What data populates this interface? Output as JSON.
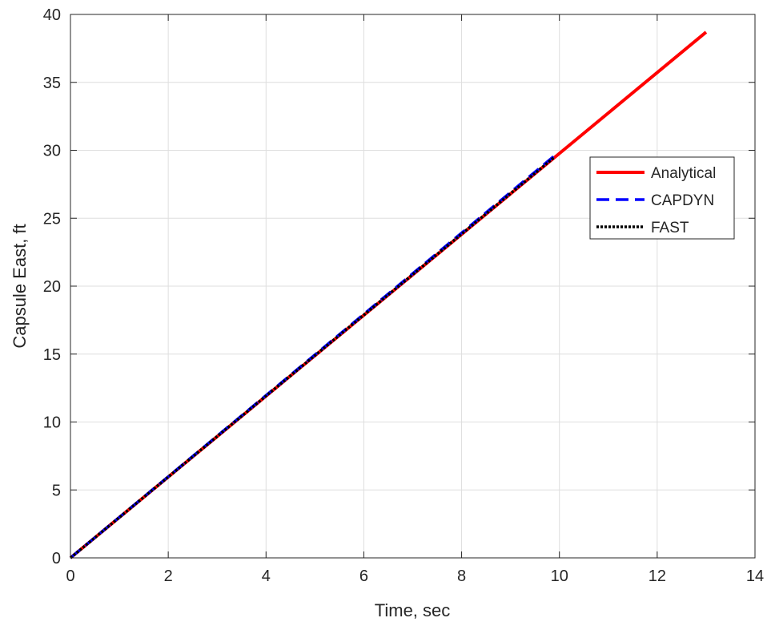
{
  "chart_data": {
    "type": "line",
    "title": "",
    "xlabel": "Time, sec",
    "ylabel": "Capsule East, ft",
    "xlim": [
      0,
      14
    ],
    "ylim": [
      0,
      40
    ],
    "xticks": [
      0,
      2,
      4,
      6,
      8,
      10,
      12,
      14
    ],
    "yticks": [
      0,
      5,
      10,
      15,
      20,
      25,
      30,
      35,
      40
    ],
    "grid": true,
    "legend_position": "right",
    "series": [
      {
        "name": "Analytical",
        "color": "#ff0000",
        "style": "solid",
        "x": [
          0,
          13
        ],
        "y": [
          0,
          38.7
        ]
      },
      {
        "name": "CAPDYN",
        "color": "#0000ff",
        "style": "dashed",
        "x": [
          0,
          9.9
        ],
        "y": [
          0,
          29.6
        ]
      },
      {
        "name": "FAST",
        "color": "#000000",
        "style": "dotted",
        "x": [
          0,
          9.9
        ],
        "y": [
          0,
          29.5
        ]
      }
    ]
  }
}
